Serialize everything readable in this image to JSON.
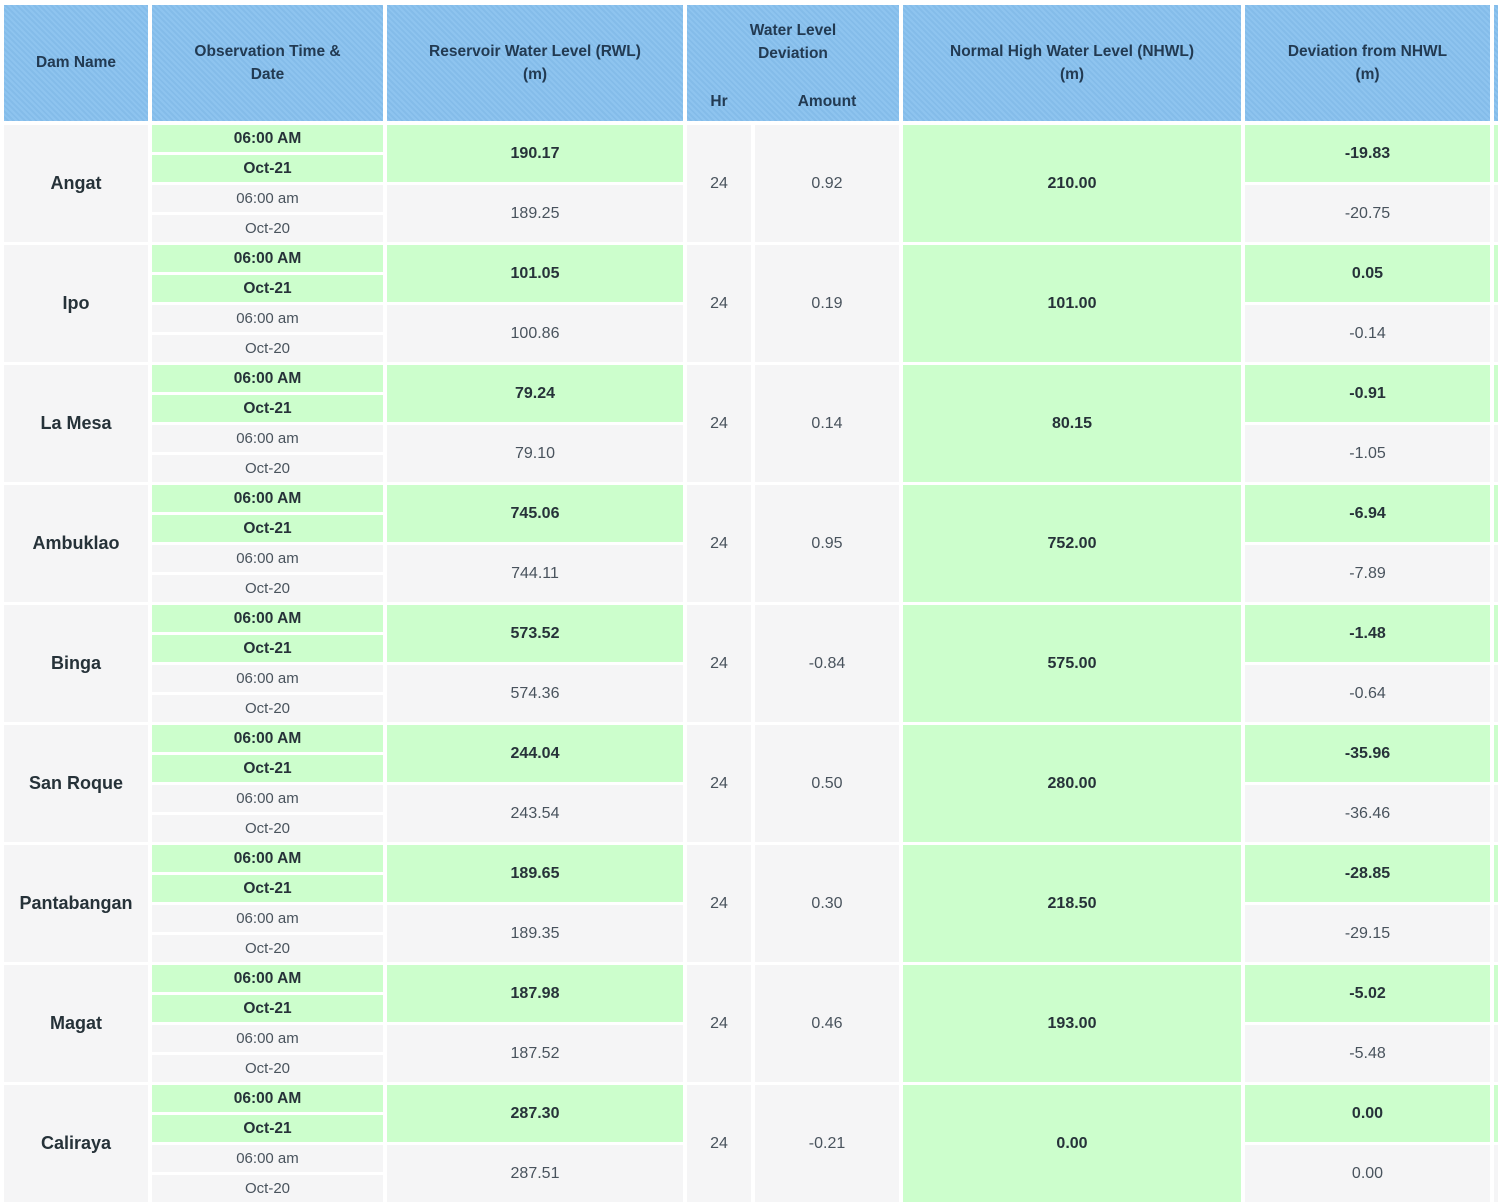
{
  "header": {
    "dam_name": "Dam Name",
    "observation": {
      "line1": "Observation Time &",
      "line2": "Date"
    },
    "rwl": {
      "line1": "Reservoir Water Level (RWL)",
      "line2": "(m)"
    },
    "deviation_group": {
      "line1": "Water Level",
      "line2": "Deviation"
    },
    "hr": "Hr",
    "amount": "Amount",
    "nhwl": {
      "line1": "Normal High Water Level (NHWL)",
      "line2": "(m)"
    },
    "dev_nhwl": {
      "line1": "Deviation from NHWL",
      "line2": "(m)"
    }
  },
  "colors": {
    "header_blue": "#87c0ee",
    "highlight_green": "#ccfecc",
    "row_gray": "#f5f5f6",
    "text_dark": "#263239",
    "text_regular": "#49535d"
  },
  "rows": [
    {
      "dam": "Angat",
      "obs_time_current": "06:00 AM",
      "obs_date_current": "Oct-21",
      "obs_time_prev": "06:00 am",
      "obs_date_prev": "Oct-20",
      "rwl_current": "190.17",
      "rwl_prev": "189.25",
      "dev_hr": "24",
      "dev_amount": "0.92",
      "nhwl": "210.00",
      "dev_nhwl_current": "-19.83",
      "dev_nhwl_prev": "-20.75"
    },
    {
      "dam": "Ipo",
      "obs_time_current": "06:00 AM",
      "obs_date_current": "Oct-21",
      "obs_time_prev": "06:00 am",
      "obs_date_prev": "Oct-20",
      "rwl_current": "101.05",
      "rwl_prev": "100.86",
      "dev_hr": "24",
      "dev_amount": "0.19",
      "nhwl": "101.00",
      "dev_nhwl_current": "0.05",
      "dev_nhwl_prev": "-0.14"
    },
    {
      "dam": "La Mesa",
      "obs_time_current": "06:00 AM",
      "obs_date_current": "Oct-21",
      "obs_time_prev": "06:00 am",
      "obs_date_prev": "Oct-20",
      "rwl_current": "79.24",
      "rwl_prev": "79.10",
      "dev_hr": "24",
      "dev_amount": "0.14",
      "nhwl": "80.15",
      "dev_nhwl_current": "-0.91",
      "dev_nhwl_prev": "-1.05"
    },
    {
      "dam": "Ambuklao",
      "obs_time_current": "06:00 AM",
      "obs_date_current": "Oct-21",
      "obs_time_prev": "06:00 am",
      "obs_date_prev": "Oct-20",
      "rwl_current": "745.06",
      "rwl_prev": "744.11",
      "dev_hr": "24",
      "dev_amount": "0.95",
      "nhwl": "752.00",
      "dev_nhwl_current": "-6.94",
      "dev_nhwl_prev": "-7.89"
    },
    {
      "dam": "Binga",
      "obs_time_current": "06:00 AM",
      "obs_date_current": "Oct-21",
      "obs_time_prev": "06:00 am",
      "obs_date_prev": "Oct-20",
      "rwl_current": "573.52",
      "rwl_prev": "574.36",
      "dev_hr": "24",
      "dev_amount": "-0.84",
      "nhwl": "575.00",
      "dev_nhwl_current": "-1.48",
      "dev_nhwl_prev": "-0.64"
    },
    {
      "dam": "San Roque",
      "obs_time_current": "06:00 AM",
      "obs_date_current": "Oct-21",
      "obs_time_prev": "06:00 am",
      "obs_date_prev": "Oct-20",
      "rwl_current": "244.04",
      "rwl_prev": "243.54",
      "dev_hr": "24",
      "dev_amount": "0.50",
      "nhwl": "280.00",
      "dev_nhwl_current": "-35.96",
      "dev_nhwl_prev": "-36.46"
    },
    {
      "dam": "Pantabangan",
      "obs_time_current": "06:00 AM",
      "obs_date_current": "Oct-21",
      "obs_time_prev": "06:00 am",
      "obs_date_prev": "Oct-20",
      "rwl_current": "189.65",
      "rwl_prev": "189.35",
      "dev_hr": "24",
      "dev_amount": "0.30",
      "nhwl": "218.50",
      "dev_nhwl_current": "-28.85",
      "dev_nhwl_prev": "-29.15"
    },
    {
      "dam": "Magat",
      "obs_time_current": "06:00 AM",
      "obs_date_current": "Oct-21",
      "obs_time_prev": "06:00 am",
      "obs_date_prev": "Oct-20",
      "rwl_current": "187.98",
      "rwl_prev": "187.52",
      "dev_hr": "24",
      "dev_amount": "0.46",
      "nhwl": "193.00",
      "dev_nhwl_current": "-5.02",
      "dev_nhwl_prev": "-5.48"
    },
    {
      "dam": "Caliraya",
      "obs_time_current": "06:00 AM",
      "obs_date_current": "Oct-21",
      "obs_time_prev": "06:00 am",
      "obs_date_prev": "Oct-20",
      "rwl_current": "287.30",
      "rwl_prev": "287.51",
      "dev_hr": "24",
      "dev_amount": "-0.21",
      "nhwl": "0.00",
      "dev_nhwl_current": "0.00",
      "dev_nhwl_prev": "0.00"
    }
  ]
}
